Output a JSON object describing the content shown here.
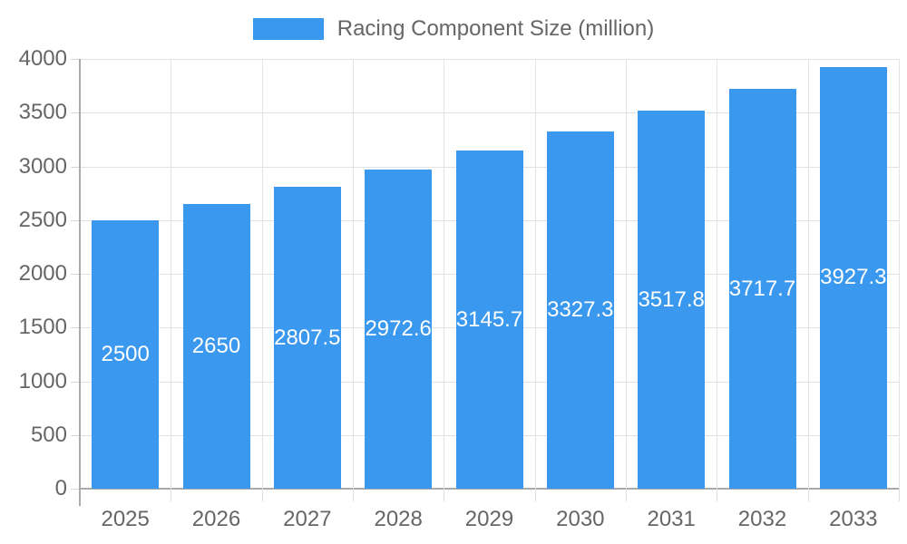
{
  "chart_data": {
    "type": "bar",
    "title": "Racing Component Size (million)",
    "legend": {
      "label": "Racing Component Size (million)",
      "position": "top"
    },
    "categories": [
      "2025",
      "2026",
      "2027",
      "2028",
      "2029",
      "2030",
      "2031",
      "2032",
      "2033"
    ],
    "values": [
      2500,
      2650,
      2807.5,
      2972.6,
      3145.7,
      3327.3,
      3517.8,
      3717.7,
      3927.3
    ],
    "xlabel": "",
    "ylabel": "",
    "ylim": [
      0,
      4000
    ],
    "y_ticks": [
      0,
      500,
      1000,
      1500,
      2000,
      2500,
      3000,
      3500,
      4000
    ],
    "grid": true,
    "value_labels_shown": true,
    "value_label_position": "center-of-bar"
  },
  "colors": {
    "bar": "#3A98EE",
    "grid_line": "#E3E3E3",
    "axis_line": "#AAAAAA",
    "tick_label": "#666666",
    "value_label": "#FFFFFF",
    "background": "#FFFFFF"
  }
}
